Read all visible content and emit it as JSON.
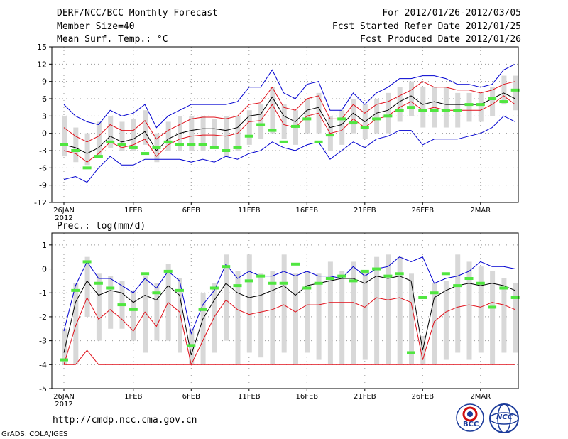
{
  "header": {
    "title": "DERF/NCC/BCC Monthly Forecast",
    "member_size": "Member Size=40",
    "variable": "Mean Surf. Temp.: °C",
    "period": "For 2012/01/26-2012/03/05",
    "started": "Fcst Started Refer Date 2012/01/25",
    "produced": "Fcst Produced Date 2012/01/26"
  },
  "footer": {
    "url": "http://cmdp.ncc.cma.gov.cn",
    "grads": "GrADS: COLA/IGES",
    "logo_left": "BCC",
    "logo_right": "NCC"
  },
  "colors": {
    "box": "#d8d8d8",
    "mean": "#000000",
    "spread": "#e0101a",
    "envelope": "#0000d0",
    "obs": "#50e640",
    "grid": "#999999"
  },
  "chart_data": [
    {
      "type": "line",
      "title": "Mean Surf. Temp.: °C",
      "ylim": [
        -12,
        15
      ],
      "yticks": [
        -12,
        -9,
        -6,
        -3,
        0,
        3,
        6,
        9,
        12,
        15
      ],
      "xticks": [
        {
          "day": 0,
          "label": "26JAN",
          "sub": "2012"
        },
        {
          "day": 6,
          "label": "1FEB"
        },
        {
          "day": 11,
          "label": "6FEB"
        },
        {
          "day": 16,
          "label": "11FEB"
        },
        {
          "day": 21,
          "label": "16FEB"
        },
        {
          "day": 26,
          "label": "21FEB"
        },
        {
          "day": 31,
          "label": "26FEB"
        },
        {
          "day": 36,
          "label": "2MAR"
        }
      ],
      "x": [
        0,
        1,
        2,
        3,
        4,
        5,
        6,
        7,
        8,
        9,
        10,
        11,
        12,
        13,
        14,
        15,
        16,
        17,
        18,
        19,
        20,
        21,
        22,
        23,
        24,
        25,
        26,
        27,
        28,
        29,
        30,
        31,
        32,
        33,
        34,
        35,
        36,
        37,
        38,
        39
      ],
      "series": [
        {
          "name": "max",
          "values": [
            5,
            3,
            2,
            1.5,
            4,
            3,
            3.5,
            5,
            1,
            3,
            4,
            5,
            5,
            5,
            5,
            5.5,
            8,
            8,
            11,
            7,
            6,
            8.5,
            9,
            4,
            4,
            7,
            5,
            7,
            8,
            9.5,
            9.5,
            10,
            10,
            9.5,
            8.5,
            8.5,
            8,
            8.5,
            11,
            12
          ]
        },
        {
          "name": "upper",
          "values": [
            1,
            -0.5,
            -1.5,
            -0.5,
            1.5,
            0.5,
            0.5,
            2.2,
            -1,
            0.5,
            1.5,
            2.5,
            2.8,
            2.8,
            2.5,
            3,
            5,
            5.3,
            8,
            4.5,
            4,
            6,
            6.5,
            2.5,
            2.5,
            5,
            3.5,
            5,
            5.5,
            6.5,
            7.5,
            9,
            8,
            8,
            7.5,
            7.5,
            7,
            7.5,
            8.5,
            9
          ]
        },
        {
          "name": "mean",
          "values": [
            -2,
            -2.5,
            -3.5,
            -2.5,
            -0.5,
            -1.5,
            -1,
            0.3,
            -3,
            -1,
            0,
            0.5,
            0.8,
            0.8,
            0.5,
            1,
            3,
            3.3,
            6.3,
            3,
            2,
            4,
            4.5,
            1,
            1.5,
            3.5,
            2,
            3.5,
            4,
            5.5,
            6.5,
            5,
            5.5,
            5,
            5,
            5,
            5,
            6,
            7,
            6
          ]
        },
        {
          "name": "lower",
          "values": [
            -3,
            -3.5,
            -5,
            -3.5,
            -1.5,
            -2.5,
            -2,
            -1,
            -4,
            -2,
            -1,
            -0.5,
            -0.3,
            -0.3,
            -0.5,
            0,
            2,
            2.2,
            5,
            1.5,
            1,
            3,
            3.5,
            0,
            0.5,
            2.5,
            1,
            2.5,
            3,
            4.5,
            5.5,
            4,
            4.5,
            4,
            4,
            4,
            4,
            5,
            6.5,
            5
          ]
        },
        {
          "name": "min",
          "values": [
            -8,
            -7.5,
            -8.5,
            -6,
            -4,
            -5.5,
            -5.5,
            -4.5,
            -4.5,
            -4.5,
            -4.5,
            -5,
            -4.5,
            -5,
            -4,
            -4.5,
            -3.5,
            -3,
            -1.5,
            -2.5,
            -3,
            -2,
            -1.5,
            -4.5,
            -3,
            -1.5,
            -2.5,
            -1,
            -0.5,
            0.5,
            0.5,
            -2,
            -1,
            -1,
            -1,
            -0.5,
            0,
            1,
            3,
            2
          ]
        },
        {
          "name": "obs",
          "values": [
            -2,
            -3,
            -6,
            -4,
            -1.5,
            -2,
            -2.5,
            -3.5,
            -2.5,
            -1.5,
            -2,
            -2,
            -2,
            -2.5,
            -3,
            -2.5,
            -0.5,
            1.5,
            0.5,
            -1.5,
            1.2,
            2.5,
            -1.5,
            -0.3,
            2.5,
            1.8,
            1,
            2.5,
            3,
            4,
            4.5,
            4,
            4,
            4,
            4,
            5,
            5,
            6,
            5.5,
            7.5
          ]
        }
      ],
      "box_ranges": [
        [
          -4,
          3
        ],
        [
          -5,
          1
        ],
        [
          -5.5,
          0
        ],
        [
          -4,
          2
        ],
        [
          -2.5,
          3
        ],
        [
          -3,
          2
        ],
        [
          -3,
          2.5
        ],
        [
          -2,
          4
        ],
        [
          -5,
          0
        ],
        [
          -3,
          2
        ],
        [
          -3,
          3
        ],
        [
          -3,
          3
        ],
        [
          -3,
          3
        ],
        [
          -2.5,
          2.5
        ],
        [
          -4,
          3
        ],
        [
          -3,
          3
        ],
        [
          -2,
          4
        ],
        [
          -1,
          5
        ],
        [
          0,
          8
        ],
        [
          -1,
          5
        ],
        [
          -2,
          4
        ],
        [
          0,
          6
        ],
        [
          0,
          7
        ],
        [
          -3,
          3
        ],
        [
          -2,
          4
        ],
        [
          0,
          6
        ],
        [
          -1,
          5
        ],
        [
          0,
          6
        ],
        [
          0,
          7
        ],
        [
          2,
          8
        ],
        [
          3,
          9
        ],
        [
          1,
          8
        ],
        [
          1,
          8
        ],
        [
          1,
          8
        ],
        [
          1,
          7
        ],
        [
          2,
          7
        ],
        [
          2,
          7
        ],
        [
          3,
          8
        ],
        [
          5,
          10
        ],
        [
          4,
          10
        ]
      ]
    },
    {
      "type": "line",
      "title": "Prec.: log(mm/d)",
      "ylim": [
        -5,
        1.5
      ],
      "yticks": [
        -5,
        -4,
        -3,
        -2,
        -1,
        0,
        1
      ],
      "xticks": [
        {
          "day": 0,
          "label": "26JAN",
          "sub": "2012"
        },
        {
          "day": 6,
          "label": "1FEB"
        },
        {
          "day": 11,
          "label": "6FEB"
        },
        {
          "day": 16,
          "label": "11FEB"
        },
        {
          "day": 21,
          "label": "16FEB"
        },
        {
          "day": 26,
          "label": "21FEB"
        },
        {
          "day": 31,
          "label": "26FEB"
        },
        {
          "day": 36,
          "label": "2MAR"
        }
      ],
      "x": [
        0,
        1,
        2,
        3,
        4,
        5,
        6,
        7,
        8,
        9,
        10,
        11,
        12,
        13,
        14,
        15,
        16,
        17,
        18,
        19,
        20,
        21,
        22,
        23,
        24,
        25,
        26,
        27,
        28,
        29,
        30,
        31,
        32,
        33,
        34,
        35,
        36,
        37,
        38,
        39
      ],
      "series": [
        {
          "name": "max",
          "values": [
            -2.6,
            -0.7,
            0.3,
            -0.4,
            -0.4,
            -0.7,
            -1.0,
            -0.4,
            -0.8,
            -0.1,
            -0.5,
            -2.7,
            -1.5,
            -0.9,
            0.2,
            -0.4,
            -0.1,
            -0.3,
            -0.3,
            -0.1,
            -0.3,
            -0.1,
            -0.3,
            -0.3,
            -0.4,
            0.1,
            -0.3,
            0.0,
            0.1,
            0.5,
            0.3,
            0.5,
            -0.6,
            -0.4,
            -0.3,
            -0.1,
            0.3,
            0.1,
            0.1,
            0.0
          ]
        },
        {
          "name": "mean",
          "values": [
            -3.5,
            -1.4,
            -0.5,
            -1.1,
            -0.9,
            -1.0,
            -1.4,
            -1.1,
            -1.3,
            -0.7,
            -1.1,
            -3.6,
            -2.1,
            -1.3,
            -0.6,
            -1.0,
            -1.2,
            -1.1,
            -0.9,
            -0.7,
            -1.1,
            -0.7,
            -0.6,
            -0.5,
            -0.4,
            -0.4,
            -0.6,
            -0.3,
            -0.4,
            -0.3,
            -0.5,
            -3.4,
            -1.2,
            -0.9,
            -0.7,
            -0.6,
            -0.7,
            -0.6,
            -0.7,
            -0.9
          ]
        },
        {
          "name": "lower",
          "values": [
            -4.0,
            -2.4,
            -1.2,
            -2.1,
            -1.7,
            -2.1,
            -2.6,
            -1.8,
            -2.4,
            -1.4,
            -1.8,
            -4.0,
            -3.0,
            -2.0,
            -1.3,
            -1.7,
            -1.9,
            -1.8,
            -1.7,
            -1.5,
            -1.8,
            -1.5,
            -1.5,
            -1.4,
            -1.4,
            -1.4,
            -1.6,
            -1.2,
            -1.3,
            -1.2,
            -1.4,
            -3.8,
            -2.2,
            -1.8,
            -1.6,
            -1.5,
            -1.6,
            -1.4,
            -1.5,
            -1.7
          ]
        },
        {
          "name": "min",
          "values": [
            -4.0,
            -4.0,
            -3.4,
            -4.0,
            -4.0,
            -4.0,
            -4.0,
            -4.0,
            -4.0,
            -4.0,
            -4.0,
            -4.0,
            -4.0,
            -4.0,
            -4.0,
            -4.0,
            -4.0,
            -4.0,
            -4.0,
            -4.0,
            -4.0,
            -4.0,
            -4.0,
            -4.0,
            -4.0,
            -4.0,
            -4.0,
            -4.0,
            -4.0,
            -4.0,
            -4.0,
            -4.0,
            -4.0,
            -4.0,
            -4.0,
            -4.0,
            -4.0,
            -4.0,
            -4.0,
            -4.0
          ]
        },
        {
          "name": "obs",
          "values": [
            -3.8,
            -0.9,
            0.3,
            -0.6,
            -0.8,
            -1.5,
            -1.7,
            -0.2,
            -1.0,
            -0.1,
            -0.9,
            -3.2,
            -1.7,
            -0.8,
            0.1,
            -0.7,
            -0.5,
            -0.3,
            -0.6,
            -0.6,
            0.2,
            -0.8,
            -0.6,
            -0.4,
            -0.3,
            -0.5,
            -0.1,
            0.0,
            -0.3,
            -0.2,
            -3.5,
            -1.2,
            -1.0,
            -0.2,
            -0.7,
            -0.4,
            -0.6,
            -1.6,
            -0.8,
            -1.2
          ]
        }
      ],
      "box_ranges": [
        [
          -4,
          -2.5
        ],
        [
          -4,
          -0.6
        ],
        [
          -2,
          0.5
        ],
        [
          -3,
          -0.2
        ],
        [
          -2.5,
          -0.3
        ],
        [
          -2.5,
          -0.5
        ],
        [
          -3,
          -0.9
        ],
        [
          -3.5,
          -0.3
        ],
        [
          -3,
          -0.6
        ],
        [
          -3,
          0.2
        ],
        [
          -3.5,
          -0.4
        ],
        [
          -4,
          -2.5
        ],
        [
          -4,
          -1
        ],
        [
          -3.5,
          -0.6
        ],
        [
          -3,
          0.6
        ],
        [
          -4,
          -0.1
        ],
        [
          -3.5,
          0.6
        ],
        [
          -3.7,
          -0.2
        ],
        [
          -4,
          -0.1
        ],
        [
          -3.5,
          0.6
        ],
        [
          -4,
          -0.2
        ],
        [
          -3.5,
          -0.1
        ],
        [
          -3.8,
          -0.2
        ],
        [
          -4,
          0.3
        ],
        [
          -4,
          -0.1
        ],
        [
          -4,
          0.3
        ],
        [
          -3.8,
          -0.1
        ],
        [
          -4,
          0.5
        ],
        [
          -4,
          0.6
        ],
        [
          -4,
          0.5
        ],
        [
          -4,
          -0.2
        ],
        [
          -4,
          -2.8
        ],
        [
          -4,
          -0.6
        ],
        [
          -3.8,
          -0.5
        ],
        [
          -3.5,
          0.6
        ],
        [
          -3.8,
          0.3
        ],
        [
          -3.5,
          0.1
        ],
        [
          -4,
          -0.1
        ],
        [
          -3.5,
          -0.4
        ],
        [
          -3.5,
          -0.6
        ]
      ]
    }
  ]
}
